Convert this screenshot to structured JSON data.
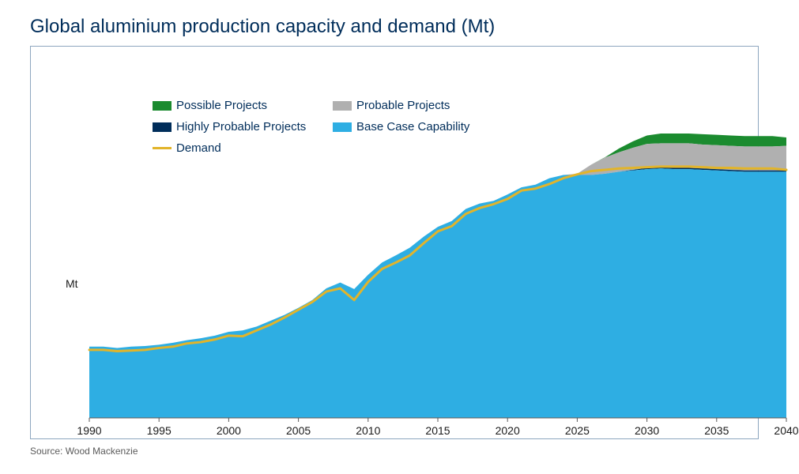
{
  "title": "Global aluminium production capacity and demand (Mt)",
  "y_axis_label": "Mt",
  "source_note": "Source: Wood Mackenzie",
  "chart": {
    "type": "stacked-area-with-line",
    "xlim": [
      1990,
      2040
    ],
    "ylim": [
      0,
      100
    ],
    "x_ticks": [
      1990,
      1995,
      2000,
      2005,
      2010,
      2015,
      2020,
      2025,
      2030,
      2035,
      2040
    ],
    "background_color": "#ffffff",
    "border_color": "#8da6bf",
    "title_fontsize": 24,
    "title_color": "#002d5a",
    "tick_fontsize": 14,
    "tick_color": "#1a1a1a",
    "axis_line_color": "#595959",
    "years": [
      1990,
      1991,
      1992,
      1993,
      1994,
      1995,
      1996,
      1997,
      1998,
      1999,
      2000,
      2001,
      2002,
      2003,
      2004,
      2005,
      2006,
      2007,
      2008,
      2009,
      2010,
      2011,
      2012,
      2013,
      2014,
      2015,
      2016,
      2017,
      2018,
      2019,
      2020,
      2021,
      2022,
      2023,
      2024,
      2025,
      2026,
      2027,
      2028,
      2029,
      2030,
      2031,
      2032,
      2033,
      2034,
      2035,
      2036,
      2037,
      2038,
      2039,
      2040
    ],
    "series": {
      "base_case": [
        22,
        22,
        21.6,
        22,
        22.2,
        22.6,
        23.2,
        24,
        24.6,
        25.4,
        26.6,
        27,
        28.2,
        30,
        31.8,
        34,
        36.4,
        40,
        41.8,
        39.8,
        44.2,
        48,
        50.2,
        52.6,
        56,
        59,
        60.8,
        64.5,
        66.2,
        67,
        69,
        71.2,
        72,
        74,
        75,
        75,
        75,
        75.4,
        76,
        76.4,
        76.8,
        77,
        76.8,
        76.8,
        76.6,
        76.4,
        76.2,
        76,
        76,
        76,
        76
      ],
      "highly_probable": [
        0,
        0,
        0,
        0,
        0,
        0,
        0,
        0,
        0,
        0,
        0,
        0,
        0,
        0,
        0,
        0,
        0,
        0,
        0,
        0,
        0,
        0,
        0,
        0,
        0,
        0,
        0,
        0,
        0,
        0,
        0,
        0,
        0,
        0,
        0,
        0,
        0,
        0,
        0,
        0.2,
        0.4,
        0.4,
        0.4,
        0.4,
        0.4,
        0.4,
        0.4,
        0.4,
        0.4,
        0.4,
        0.4
      ],
      "probable": [
        0,
        0,
        0,
        0,
        0,
        0,
        0,
        0,
        0,
        0,
        0,
        0,
        0,
        0,
        0,
        0,
        0,
        0,
        0,
        0,
        0,
        0,
        0,
        0,
        0,
        0,
        0,
        0,
        0,
        0,
        0,
        0,
        0,
        0,
        0,
        0.4,
        3.2,
        5,
        6,
        6.8,
        7.4,
        7.4,
        7.6,
        7.6,
        7.4,
        7.4,
        7.4,
        7.4,
        7.4,
        7.4,
        7.6
      ],
      "possible": [
        0,
        0,
        0,
        0,
        0,
        0,
        0,
        0,
        0,
        0,
        0,
        0,
        0,
        0,
        0,
        0,
        0,
        0,
        0,
        0,
        0,
        0,
        0,
        0,
        0,
        0,
        0,
        0,
        0,
        0,
        0,
        0,
        0,
        0,
        0,
        0,
        0,
        0.1,
        1.2,
        2,
        2.6,
        3,
        3,
        3,
        3.2,
        3.2,
        3.2,
        3.2,
        3.2,
        3.2,
        2.6
      ],
      "demand": [
        21,
        21,
        20.6,
        20.8,
        21,
        21.6,
        22,
        23,
        23.4,
        24.2,
        25.4,
        25.2,
        27,
        28.8,
        31,
        33.4,
        35.8,
        39,
        40,
        36.4,
        42,
        46,
        48,
        50.2,
        54,
        57.6,
        59.2,
        63,
        64.8,
        66,
        67.6,
        70.2,
        70.8,
        72.2,
        74,
        75.2,
        76.2,
        76.6,
        77,
        77.2,
        77.4,
        77.6,
        77.6,
        77.6,
        77.4,
        77.2,
        77.2,
        77,
        77,
        77,
        76.6
      ]
    },
    "colors": {
      "base_case": "#2eaee3",
      "highly_probable": "#002d5a",
      "probable": "#b0b0b0",
      "possible": "#1b8b2f",
      "demand": "#e2b42a",
      "demand_outline": "#b38c15"
    },
    "line_width": {
      "demand": 3
    },
    "legend": {
      "position": "inside-top",
      "fontsize": 15,
      "text_color": "#002d5a",
      "items": [
        {
          "key": "possible",
          "label": "Possible Projects",
          "type": "area"
        },
        {
          "key": "probable",
          "label": "Probable Projects",
          "type": "area"
        },
        {
          "key": "highly_probable",
          "label": "Highly Probable Projects",
          "type": "area"
        },
        {
          "key": "base_case",
          "label": "Base Case Capability",
          "type": "area"
        },
        {
          "key": "demand",
          "label": "Demand",
          "type": "line"
        }
      ]
    }
  }
}
